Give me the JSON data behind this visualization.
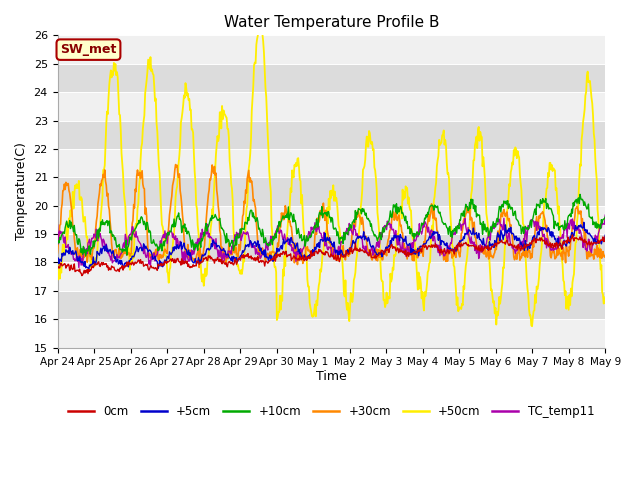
{
  "title": "Water Temperature Profile B",
  "xlabel": "Time",
  "ylabel": "Temperature(C)",
  "ylim": [
    15.0,
    26.0
  ],
  "yticks": [
    15.0,
    16.0,
    17.0,
    18.0,
    19.0,
    20.0,
    21.0,
    22.0,
    23.0,
    24.0,
    25.0,
    26.0
  ],
  "xtick_labels": [
    "Apr 24",
    "Apr 25",
    "Apr 26",
    "Apr 27",
    "Apr 28",
    "Apr 29",
    "Apr 30",
    "May 1",
    "May 2",
    "May 3",
    "May 4",
    "May 5",
    "May 6",
    "May 7",
    "May 8",
    "May 9"
  ],
  "colors": {
    "0cm": "#cc0000",
    "+5cm": "#0000cc",
    "+10cm": "#00aa00",
    "+30cm": "#ff8800",
    "+50cm": "#ffee00",
    "TC_temp11": "#aa00aa"
  },
  "plot_bg": "#e8e8e8",
  "band_light": "#f0f0f0",
  "band_dark": "#dcdcdc",
  "sw_met_bg": "#ffffcc",
  "sw_met_border": "#aa0000",
  "sw_met_text": "#880000",
  "figsize": [
    6.4,
    4.8
  ],
  "dpi": 100
}
